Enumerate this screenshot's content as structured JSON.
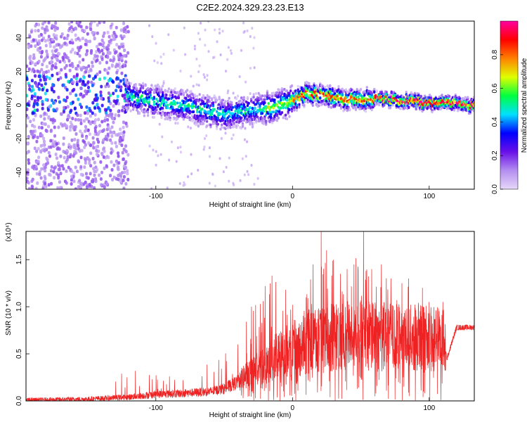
{
  "figure": {
    "title": "C2E2.2024.329.23.23.E13"
  },
  "chart_data": [
    {
      "type": "heatmap",
      "panel": "spectrogram",
      "xlabel": "Height of straight line (km)",
      "ylabel": "Frequency (Hz)",
      "xlim": [
        -195,
        133
      ],
      "ylim": [
        -50,
        50
      ],
      "xticks": [
        -100,
        0,
        100
      ],
      "xtick_labels": [
        "-100",
        "0",
        "100"
      ],
      "yticks": [
        -40,
        -20,
        0,
        20,
        40
      ],
      "ytick_labels": [
        "-40",
        "-20",
        "0",
        "20",
        "40"
      ],
      "grid": false,
      "colorbar": {
        "label": "Normalized spectral amplitude",
        "range": [
          0,
          1
        ],
        "ticks": [
          0,
          0.2,
          0.4,
          0.6,
          0.8
        ],
        "tick_labels": [
          "0.0",
          "0.2",
          "0.4",
          "0.6",
          "0.8"
        ],
        "colormap": [
          "#e6d8f8",
          "#b48ef0",
          "#6a10e8",
          "#0000ff",
          "#00e0ff",
          "#00ff40",
          "#e0ff00",
          "#ff8000",
          "#ff0000",
          "#ff00a0"
        ]
      },
      "ridge": {
        "x": [
          -120,
          -100,
          -80,
          -60,
          -50,
          -40,
          -20,
          0,
          10,
          20,
          40,
          60,
          80,
          100,
          120,
          133
        ],
        "frequency": [
          6,
          2,
          0,
          -4,
          -6,
          -4,
          -2,
          2,
          7,
          6,
          3,
          4,
          3,
          1,
          1,
          0
        ]
      }
    },
    {
      "type": "line",
      "panel": "snr",
      "xlabel": "Height of straight line (km)",
      "ylabel": "SNR (10 * v/v)",
      "y_multiplier": "(x10⁴)",
      "xlim": [
        -195,
        133
      ],
      "ylim": [
        0,
        1.8
      ],
      "xticks": [
        -100,
        0,
        100
      ],
      "xtick_labels": [
        "-100",
        "0",
        "100"
      ],
      "yticks": [
        0.0,
        0.5,
        1.0,
        1.5
      ],
      "ytick_labels": [
        "0.0",
        "0.5",
        "1.0",
        "1.5"
      ],
      "grid": false,
      "series": [
        {
          "color": "#ee2222",
          "baseline": {
            "x": [
              -195,
              -150,
              -120,
              -100,
              -80,
              -60,
              -50,
              -40,
              -30,
              -20,
              -10,
              0,
              10,
              20,
              30,
              40,
              50,
              60,
              70,
              80,
              90,
              100,
              110,
              113,
              120,
              133
            ],
            "y": [
              0.01,
              0.02,
              0.04,
              0.07,
              0.08,
              0.1,
              0.13,
              0.2,
              0.3,
              0.4,
              0.48,
              0.55,
              0.6,
              0.64,
              0.67,
              0.69,
              0.69,
              0.68,
              0.68,
              0.67,
              0.66,
              0.66,
              0.66,
              0.45,
              0.78,
              0.78
            ]
          },
          "peaks": {
            "x": [
              -125,
              -115,
              -90,
              -80,
              -40,
              -30,
              -20,
              -15,
              -5,
              0,
              10,
              15,
              21,
              25,
              30,
              35,
              40,
              45,
              52,
              58,
              65,
              72,
              80,
              85,
              95,
              100,
              110
            ],
            "y": [
              0.29,
              0.32,
              0.26,
              0.22,
              0.6,
              1.0,
              1.22,
              1.33,
              1.18,
              1.02,
              1.1,
              1.45,
              1.8,
              1.6,
              1.5,
              1.35,
              1.4,
              1.45,
              1.82,
              1.4,
              1.45,
              1.3,
              1.25,
              1.3,
              1.2,
              1.05,
              1.05
            ]
          }
        }
      ]
    }
  ]
}
